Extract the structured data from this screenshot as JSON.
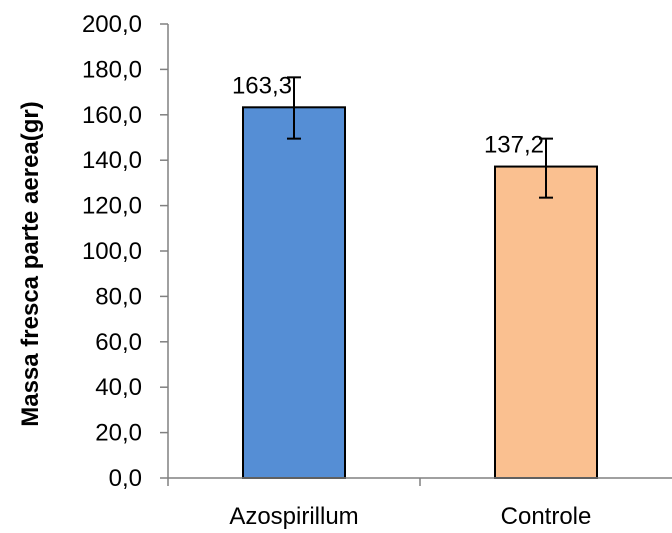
{
  "chart_data": {
    "type": "bar",
    "categories": [
      "Azospirillum",
      "Controle"
    ],
    "values": [
      163.3,
      137.2
    ],
    "value_labels": [
      "163,3",
      "137,2"
    ],
    "error_bars": [
      {
        "low": 149.5,
        "high": 176.5
      },
      {
        "low": 123.5,
        "high": 149.5
      }
    ],
    "colors": [
      "#558ED5",
      "#FAC090"
    ],
    "ylabel": "Massa fresca parte aerea(gr)",
    "xlabel": "",
    "title": "",
    "ylim": [
      0,
      200
    ],
    "yticks": [
      0,
      20,
      40,
      60,
      80,
      100,
      120,
      140,
      160,
      180,
      200
    ],
    "ytick_labels": [
      "0,0",
      "20,0",
      "40,0",
      "60,0",
      "80,0",
      "100,0",
      "120,0",
      "140,0",
      "160,0",
      "180,0",
      "200,0"
    ],
    "grid": false,
    "legend": "none"
  }
}
